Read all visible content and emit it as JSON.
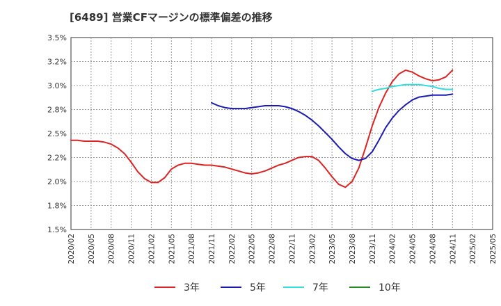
{
  "chart_data": {
    "type": "line",
    "title": "[6489]  営業CFマージンの標準偏差の推移",
    "xlabel": "",
    "ylabel": "",
    "x_ticks": [
      "2020/02",
      "2020/05",
      "2020/08",
      "2020/11",
      "2021/02",
      "2021/05",
      "2021/08",
      "2021/11",
      "2022/02",
      "2022/05",
      "2022/08",
      "2022/11",
      "2023/02",
      "2023/05",
      "2023/08",
      "2023/11",
      "2024/02",
      "2024/05",
      "2024/08",
      "2024/11",
      "2025/02",
      "2025/05"
    ],
    "y_ticks": [
      "1.5%",
      "1.8%",
      "2.0%",
      "2.2%",
      "2.5%",
      "2.8%",
      "3.0%",
      "3.2%",
      "3.5%"
    ],
    "ylim": [
      1.5,
      3.5
    ],
    "grid": true,
    "legend_position": "bottom",
    "series": [
      {
        "name": "3年",
        "color": "#dd2222",
        "x": [
          "2020/02",
          "2020/03",
          "2020/04",
          "2020/05",
          "2020/06",
          "2020/07",
          "2020/08",
          "2020/09",
          "2020/10",
          "2020/11",
          "2020/12",
          "2021/01",
          "2021/02",
          "2021/03",
          "2021/04",
          "2021/05",
          "2021/06",
          "2021/07",
          "2021/08",
          "2021/09",
          "2021/10",
          "2021/11",
          "2021/12",
          "2022/01",
          "2022/02",
          "2022/03",
          "2022/04",
          "2022/05",
          "2022/06",
          "2022/07",
          "2022/08",
          "2022/09",
          "2022/10",
          "2022/11",
          "2022/12",
          "2023/01",
          "2023/02",
          "2023/03",
          "2023/04",
          "2023/05",
          "2023/06",
          "2023/07",
          "2023/08",
          "2023/09",
          "2023/10",
          "2023/11",
          "2023/12",
          "2024/01",
          "2024/02",
          "2024/03",
          "2024/04",
          "2024/05",
          "2024/06",
          "2024/07",
          "2024/08",
          "2024/09",
          "2024/10",
          "2024/11"
        ],
        "values": [
          2.43,
          2.43,
          2.42,
          2.42,
          2.42,
          2.41,
          2.39,
          2.35,
          2.29,
          2.2,
          2.1,
          2.03,
          1.99,
          1.99,
          2.04,
          2.13,
          2.17,
          2.19,
          2.19,
          2.18,
          2.17,
          2.17,
          2.16,
          2.15,
          2.13,
          2.11,
          2.09,
          2.08,
          2.09,
          2.11,
          2.14,
          2.17,
          2.19,
          2.22,
          2.25,
          2.26,
          2.26,
          2.22,
          2.14,
          2.05,
          1.97,
          1.94,
          2.0,
          2.14,
          2.35,
          2.58,
          2.77,
          2.92,
          3.04,
          3.12,
          3.16,
          3.14,
          3.1,
          3.07,
          3.05,
          3.06,
          3.09,
          3.16
        ]
      },
      {
        "name": "5年",
        "color": "#1a1ab4",
        "x": [
          "2021/11",
          "2021/12",
          "2022/01",
          "2022/02",
          "2022/03",
          "2022/04",
          "2022/05",
          "2022/06",
          "2022/07",
          "2022/08",
          "2022/09",
          "2022/10",
          "2022/11",
          "2022/12",
          "2023/01",
          "2023/02",
          "2023/03",
          "2023/04",
          "2023/05",
          "2023/06",
          "2023/07",
          "2023/08",
          "2023/09",
          "2023/10",
          "2023/11",
          "2023/12",
          "2024/01",
          "2024/02",
          "2024/03",
          "2024/04",
          "2024/05",
          "2024/06",
          "2024/07",
          "2024/08",
          "2024/09",
          "2024/10",
          "2024/11"
        ],
        "values": [
          2.82,
          2.79,
          2.77,
          2.76,
          2.76,
          2.76,
          2.77,
          2.78,
          2.79,
          2.79,
          2.79,
          2.78,
          2.76,
          2.73,
          2.69,
          2.64,
          2.58,
          2.51,
          2.44,
          2.36,
          2.29,
          2.24,
          2.22,
          2.24,
          2.31,
          2.43,
          2.56,
          2.66,
          2.74,
          2.8,
          2.85,
          2.88,
          2.89,
          2.9,
          2.9,
          2.9,
          2.91
        ]
      },
      {
        "name": "7年",
        "color": "#33dddd",
        "x": [
          "2023/11",
          "2023/12",
          "2024/01",
          "2024/02",
          "2024/03",
          "2024/04",
          "2024/05",
          "2024/06",
          "2024/07",
          "2024/08",
          "2024/09",
          "2024/10",
          "2024/11"
        ],
        "values": [
          2.94,
          2.96,
          2.97,
          2.99,
          3.0,
          3.01,
          3.01,
          3.01,
          3.0,
          2.99,
          2.97,
          2.96,
          2.96
        ]
      },
      {
        "name": "10年",
        "color": "#228822",
        "x": [],
        "values": []
      }
    ]
  }
}
